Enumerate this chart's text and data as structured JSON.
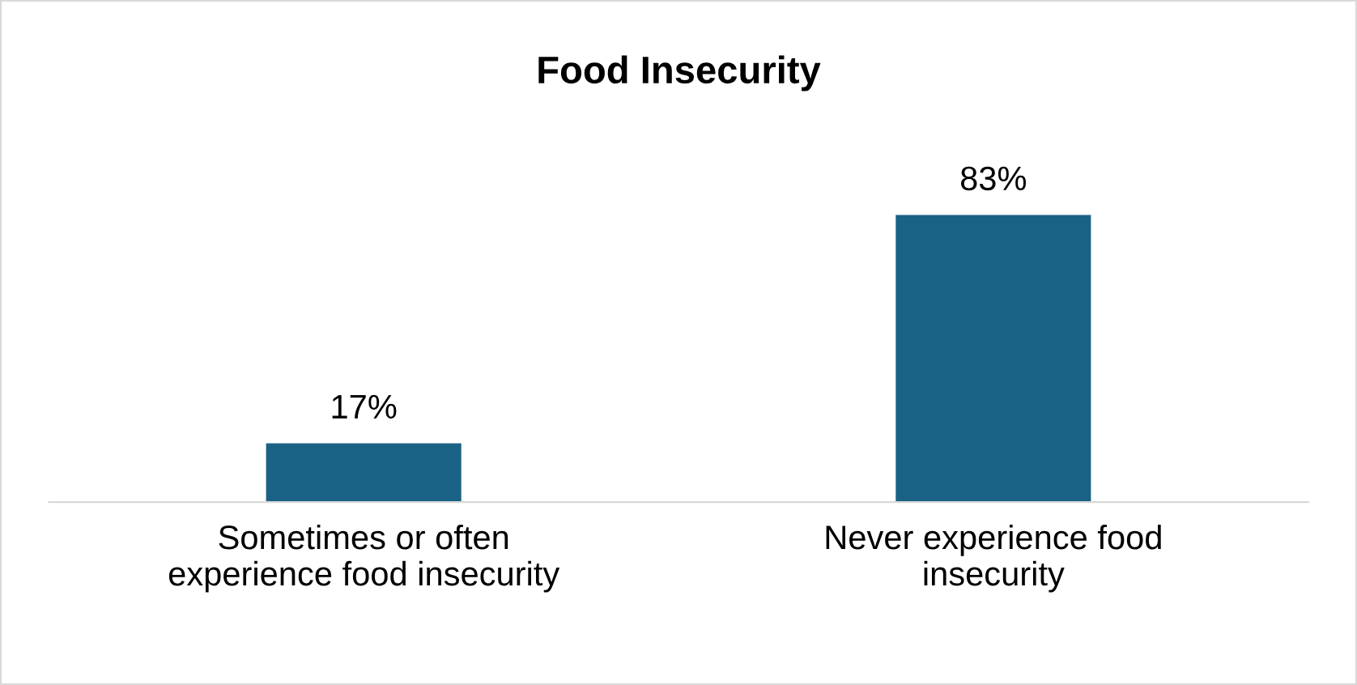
{
  "chart_data": {
    "type": "bar",
    "title": "Food Insecurity",
    "categories": [
      "Sometimes or often\nexperience food insecurity",
      "Never experience food\ninsecurity"
    ],
    "values": [
      17,
      83
    ],
    "value_labels": [
      "17%",
      "83%"
    ],
    "color": "#1a6285",
    "grid": false,
    "legend": false,
    "tick_labels": "x"
  }
}
